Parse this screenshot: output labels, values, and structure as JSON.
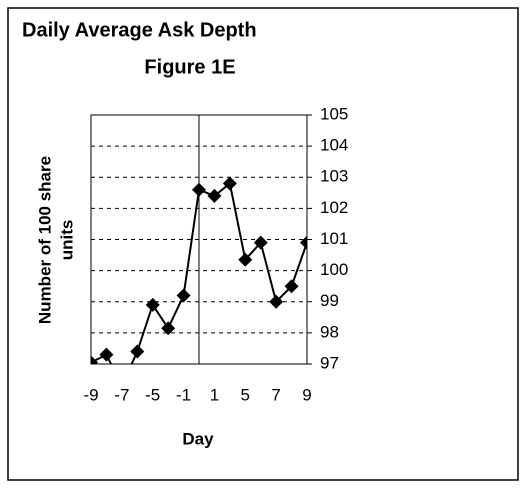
{
  "chart_data": {
    "type": "line",
    "title": "Daily Average Ask Depth",
    "subtitle": "Figure 1E",
    "y_label": [
      "Number of 100 share",
      "units"
    ],
    "x_label": "Day",
    "categories": [
      "-9",
      null,
      "-7",
      null,
      "-5",
      null,
      "-1",
      null,
      "1",
      null,
      "5",
      null,
      "7",
      null,
      "9"
    ],
    "series": [
      {
        "color": "#000000",
        "values": [
          97.05,
          97.3,
          96.3,
          97.4,
          98.9,
          98.15,
          99.2,
          102.6,
          102.4,
          102.8,
          100.35,
          100.9,
          99.0,
          99.5,
          100.9
        ]
      }
    ],
    "ylim": [
      97,
      105
    ],
    "yticks": [
      97,
      98,
      99,
      100,
      101,
      102,
      103,
      104,
      105
    ],
    "grid": true
  }
}
